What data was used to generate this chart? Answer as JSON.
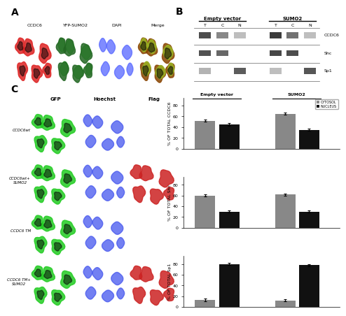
{
  "panel_A_labels": [
    "CCDC6",
    "YFP-SUMO2",
    "DAPI",
    "Merge"
  ],
  "panel_A_colors": [
    "#cc0000",
    "#33bb33",
    "#3333cc",
    "#aaaa00"
  ],
  "panel_A_cell_colors": [
    "#ff3333",
    "#55ee55",
    "#5555ff",
    "#cccc44"
  ],
  "panel_C_row_labels": [
    "CCDC6wt",
    "CCDC6wt+\nSUMO2",
    "CCDC6 TM",
    "CCDC6 TM+\nSUMO2"
  ],
  "panel_C_col_labels": [
    "GFP",
    "Hoechst",
    "Flag"
  ],
  "bar_data": {
    "CCDC6": {
      "Empty vector": {
        "CYTOSOL": 52,
        "NUCLEUS": 45
      },
      "SUMO2": {
        "CYTOSOL": 65,
        "NUCLEUS": 35
      }
    },
    "Shc": {
      "Empty vector": {
        "CYTOSOL": 60,
        "NUCLEUS": 30
      },
      "SUMO2": {
        "CYTOSOL": 62,
        "NUCLEUS": 30
      }
    },
    "Sp1": {
      "Empty vector": {
        "CYTOSOL": 13,
        "NUCLEUS": 80
      },
      "SUMO2": {
        "CYTOSOL": 12,
        "NUCLEUS": 78
      }
    }
  },
  "bar_color_cytosol": "#888888",
  "bar_color_nucleus": "#111111",
  "ylabel_CCDC6": "% OF TOTAL CCDC6",
  "ylabel_Shc": "% OF TOTAL Shc",
  "ylabel_Sp1": "% OF TOTAL Sp1",
  "yticks": [
    0,
    20,
    40,
    60,
    80
  ],
  "error_bar": 2,
  "bg_color": "#ffffff",
  "panel_label_fontsize": 10,
  "axis_label_fontsize": 4.5,
  "tick_fontsize": 4.5,
  "flag_has_red": [
    false,
    true,
    false,
    true
  ]
}
